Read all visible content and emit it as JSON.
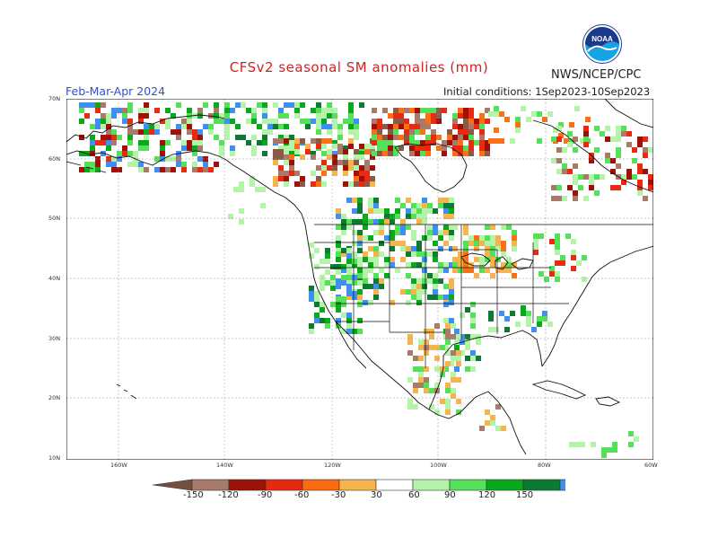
{
  "header": {
    "title": "CFSv2 seasonal SM anomalies (mm)",
    "org": "NWS/NCEP/CPC",
    "season": "Feb-Mar-Apr 2024",
    "initial_conditions": "Initial conditions: 1Sep2023-10Sep2023",
    "logo_text": "NOAA"
  },
  "map": {
    "lat_labels": [
      "70N",
      "60N",
      "50N",
      "40N",
      "30N",
      "20N",
      "10N"
    ],
    "lon_labels": [
      "160W",
      "140W",
      "120W",
      "100W",
      "80W",
      "60W"
    ]
  },
  "colorbar": {
    "labels": [
      "-150",
      "-120",
      "-90",
      "-60",
      "-30",
      "30",
      "60",
      "90",
      "120",
      "150"
    ],
    "colors": [
      "#74503c",
      "#a87a6a",
      "#9a1208",
      "#e62a10",
      "#fa6a10",
      "#f6b44c",
      "#ffffff",
      "#b4f4a8",
      "#54e058",
      "#08aa1c",
      "#0c7a30",
      "#3e8ef4",
      "#2040e8"
    ]
  },
  "anomaly_colors": {
    "dry_strong": "#8a5a48",
    "dry_brown": "#a87a6a",
    "dry_darkred": "#a01008",
    "dry_red": "#e82a10",
    "dry_orange": "#fb7012",
    "dry_light": "#f6b44c",
    "wet_light": "#b4f4a8",
    "wet_mid": "#54e058",
    "wet_dark": "#08aa1c",
    "wet_darker": "#0c7a30",
    "wet_blue": "#3e8ef4"
  }
}
